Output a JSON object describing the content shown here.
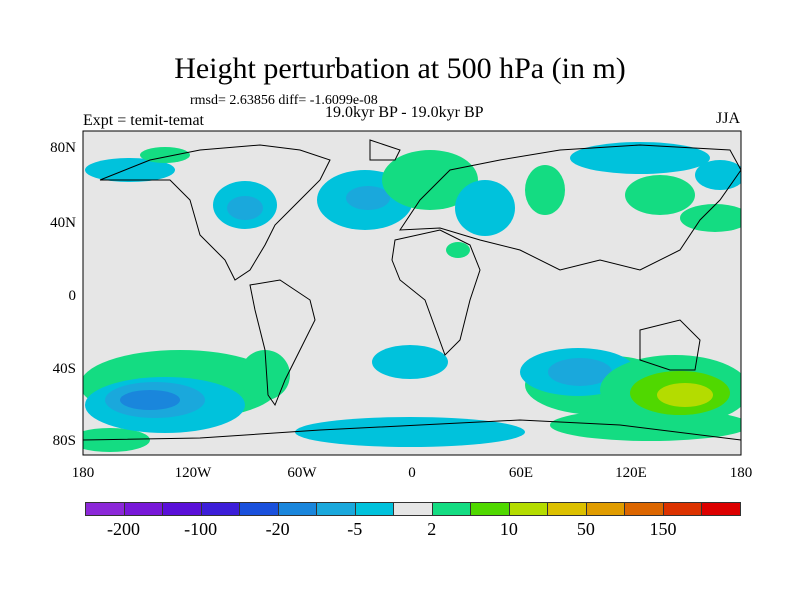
{
  "title": "Height perturbation at 500 hPa (in m)",
  "rmsd_text": "rmsd= 2.63856 diff= -1.6099e-08",
  "expt": "Expt = temit-temat",
  "period": "19.0kyr BP - 19.0kyr BP",
  "season": "JJA",
  "lat_labels": [
    "80N",
    "40N",
    "0",
    "40S",
    "80S"
  ],
  "lon_labels": [
    "180",
    "120W",
    "60W",
    "0",
    "60E",
    "120E",
    "180"
  ],
  "colorbar": {
    "colors": [
      "#8c28d8",
      "#7818d8",
      "#5a10d8",
      "#3c1ed8",
      "#1a50dc",
      "#1a86dc",
      "#1aa8dc",
      "#00c2dc",
      "#e6e6e6",
      "#14dc82",
      "#50d800",
      "#b4dc00",
      "#dcc000",
      "#e09c00",
      "#dc6600",
      "#dc3200",
      "#dc0000"
    ],
    "labels": [
      "-200",
      "-100",
      "-20",
      "-5",
      "2",
      "10",
      "50",
      "150"
    ]
  }
}
